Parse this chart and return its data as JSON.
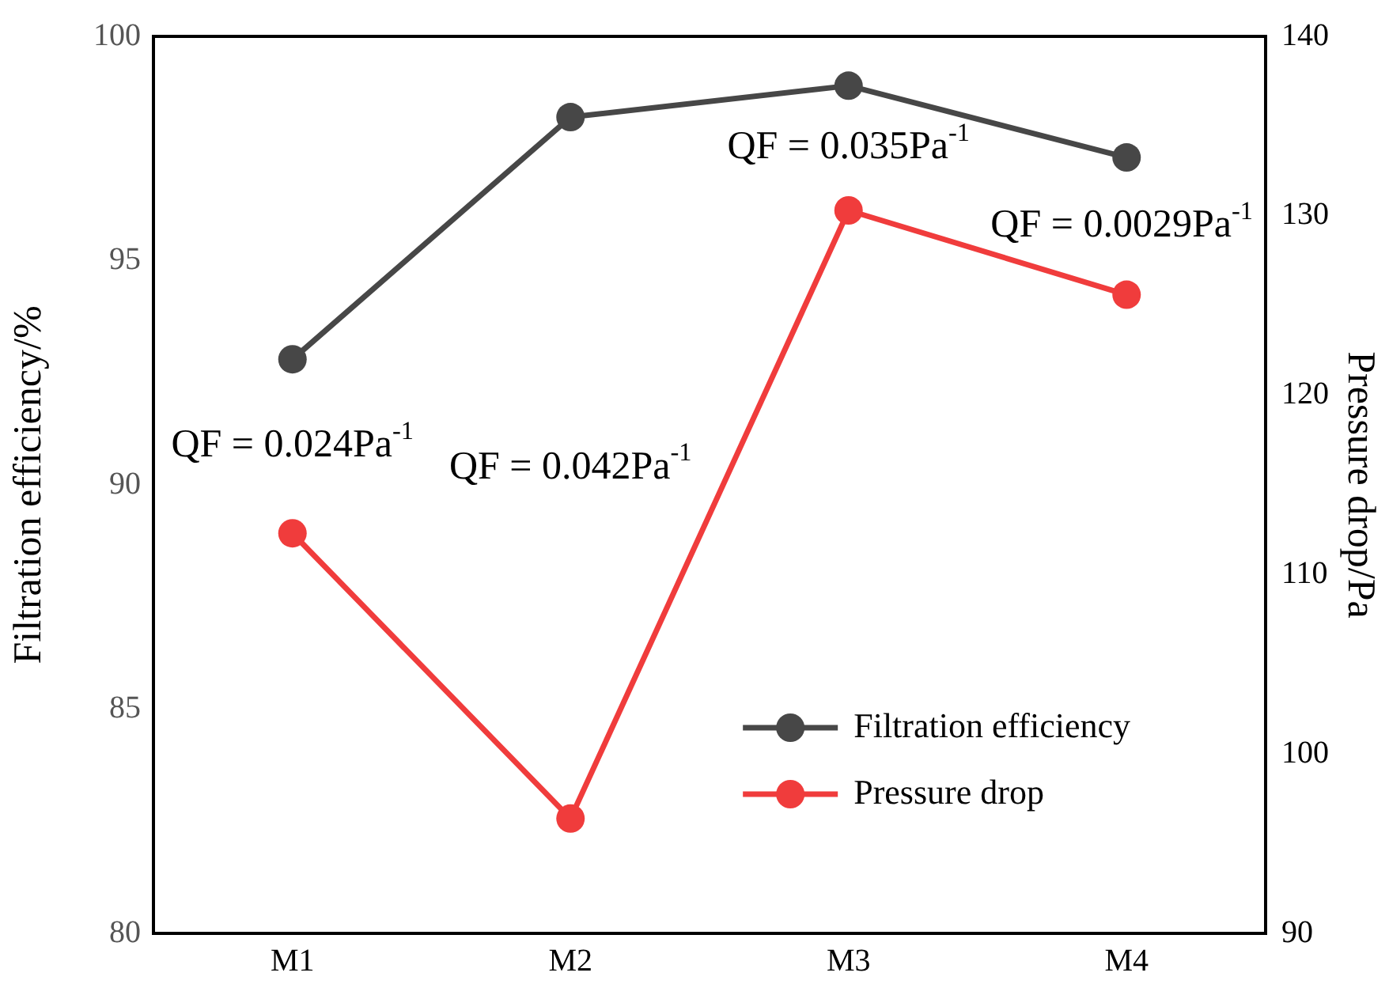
{
  "chart_data": {
    "type": "line",
    "xlabel": null,
    "ylabel": "Filtration efficiency/%",
    "y2label": "Pressure drop/Pa",
    "categories": [
      "M1",
      "M2",
      "M3",
      "M4"
    ],
    "series": [
      {
        "name": "Filtration efficiency",
        "color": "#474747",
        "values": [
          92.8,
          98.2,
          98.9,
          97.3
        ]
      },
      {
        "name": "Pressure drop",
        "color": "#f03c3c",
        "values": [
          112.3,
          96.4,
          130.3,
          125.6
        ],
        "axis": "y2"
      }
    ],
    "ylim": [
      80,
      100
    ],
    "yticks": [
      80,
      85,
      90,
      95,
      100
    ],
    "y2lim": [
      90,
      140
    ],
    "y2ticks": [
      90,
      100,
      110,
      120,
      130,
      140
    ],
    "annotations": [
      "QF = 0.024Pa$^{-1}$",
      "QF = 0.042Pa$^{-1}$",
      "QF = 0.035Pa$^{-1}$",
      "QF = 0.0029Pa$^{-1}$"
    ],
    "legend": "bottom right",
    "marker": "circle",
    "line_style": "solid",
    "grid": false
  }
}
